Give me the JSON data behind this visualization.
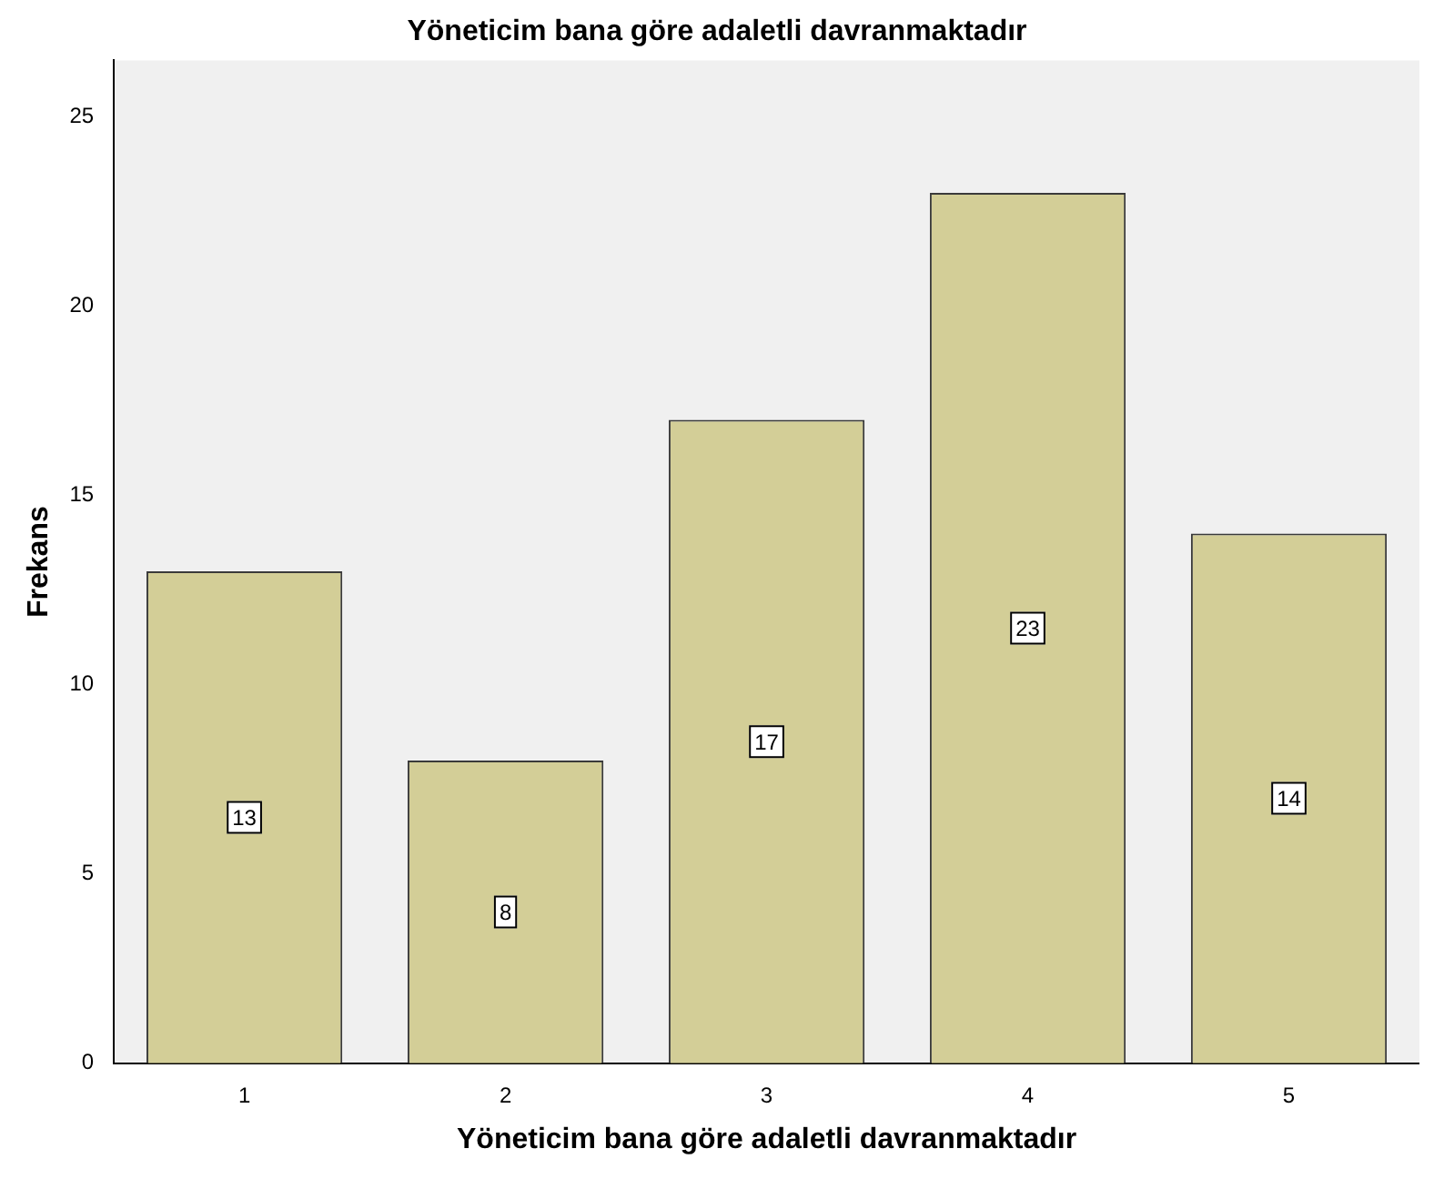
{
  "chart_data": {
    "type": "bar",
    "title": "Yöneticim bana göre adaletli davranmaktadır",
    "xlabel": "Yöneticim bana göre adaletli davranmaktadır",
    "ylabel": "Frekans",
    "categories": [
      "1",
      "2",
      "3",
      "4",
      "5"
    ],
    "values": [
      13,
      8,
      17,
      23,
      14
    ],
    "color": "#d3ce97",
    "ylim": [
      0,
      26.5
    ],
    "yticks": [
      0,
      5,
      10,
      15,
      20,
      25
    ],
    "grid": false,
    "legend": false,
    "data_labels": true
  }
}
